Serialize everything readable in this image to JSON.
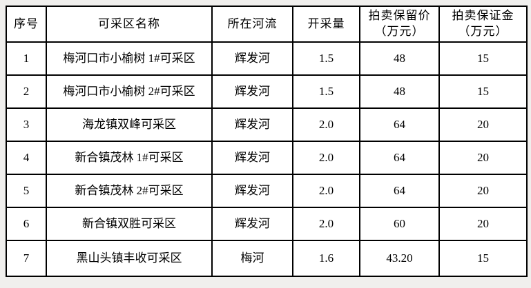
{
  "page": {
    "background_color": "#f0efed"
  },
  "table": {
    "name": "mining-area-auction-table",
    "border_color": "#000000",
    "cell_background": "#ffffff",
    "text_color": "#000000",
    "columns": [
      {
        "key": "index",
        "label_lines": [
          "序号"
        ]
      },
      {
        "key": "area-name",
        "label_lines": [
          "可采区名称"
        ]
      },
      {
        "key": "river",
        "label_lines": [
          "所在河流"
        ]
      },
      {
        "key": "mining-volume",
        "label_lines": [
          "开采量"
        ]
      },
      {
        "key": "reserve-price",
        "label_lines": [
          "拍卖保留价",
          "（万元）"
        ]
      },
      {
        "key": "deposit",
        "label_lines": [
          "拍卖保证金",
          "（万元）"
        ]
      }
    ],
    "rows": [
      [
        "1",
        "梅河口市小榆树 1#可采区",
        "辉发河",
        "1.5",
        "48",
        "15"
      ],
      [
        "2",
        "梅河口市小榆树 2#可采区",
        "辉发河",
        "1.5",
        "48",
        "15"
      ],
      [
        "3",
        "海龙镇双峰可采区",
        "辉发河",
        "2.0",
        "64",
        "20"
      ],
      [
        "4",
        "新合镇茂林 1#可采区",
        "辉发河",
        "2.0",
        "64",
        "20"
      ],
      [
        "5",
        "新合镇茂林 2#可采区",
        "辉发河",
        "2.0",
        "64",
        "20"
      ],
      [
        "6",
        "新合镇双胜可采区",
        "辉发河",
        "2.0",
        "60",
        "20"
      ],
      [
        "7",
        "黑山头镇丰收可采区",
        "梅河",
        "1.6",
        "43.20",
        "15"
      ]
    ]
  }
}
